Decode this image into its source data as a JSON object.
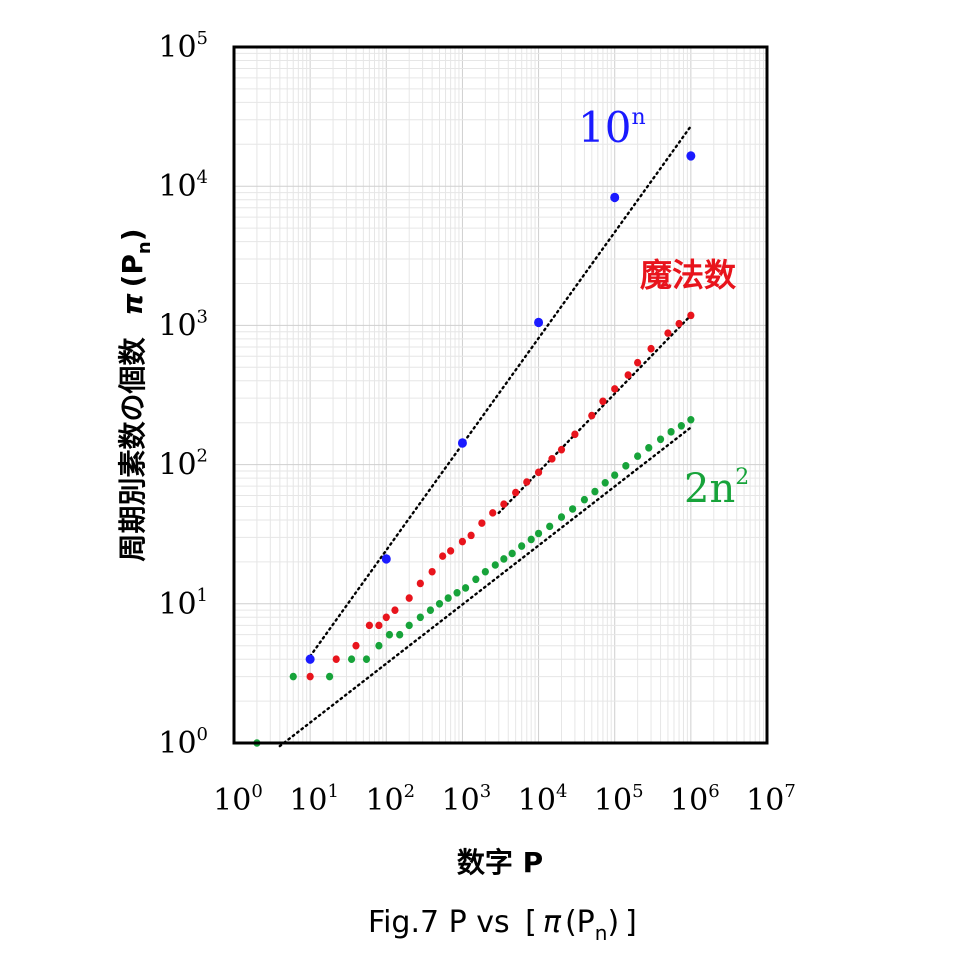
{
  "chart_data": {
    "type": "scatter",
    "title": "Fig.7  P vs [π(P_n)]",
    "title_parts": {
      "main": "Fig.7  P vs ",
      "bracket_open": "[",
      "pi": "π",
      "paren_open": "(",
      "P": "P",
      "sub": "n",
      "paren_close": ")",
      "bracket_close": "]"
    },
    "xlabel": "数字 P",
    "ylabel": "周期別素数の個数",
    "ylabel_symbol": {
      "pi": "π",
      "open": "(",
      "P": "P",
      "sub": "n",
      "close": ")"
    },
    "xscale": "log",
    "yscale": "log",
    "xlim": [
      1,
      10000000
    ],
    "ylim": [
      1,
      100000
    ],
    "grid": true,
    "x_ticks": [
      {
        "base": "10",
        "exp": "0"
      },
      {
        "base": "10",
        "exp": "1"
      },
      {
        "base": "10",
        "exp": "2"
      },
      {
        "base": "10",
        "exp": "3"
      },
      {
        "base": "10",
        "exp": "4"
      },
      {
        "base": "10",
        "exp": "5"
      },
      {
        "base": "10",
        "exp": "6"
      },
      {
        "base": "10",
        "exp": "7"
      }
    ],
    "y_ticks": [
      {
        "base": "10",
        "exp": "0"
      },
      {
        "base": "10",
        "exp": "1"
      },
      {
        "base": "10",
        "exp": "2"
      },
      {
        "base": "10",
        "exp": "3"
      },
      {
        "base": "10",
        "exp": "4"
      },
      {
        "base": "10",
        "exp": "5"
      }
    ],
    "series": [
      {
        "name": "10^n",
        "label_base": "10",
        "label_exp": "n",
        "color": "#1a1aff",
        "points": [
          [
            10,
            4
          ],
          [
            100,
            21
          ],
          [
            1000,
            143
          ],
          [
            10000,
            1050
          ],
          [
            100000,
            8300
          ],
          [
            1000000,
            16500
          ]
        ],
        "trend": {
          "from": [
            10,
            4.2
          ],
          "to": [
            1000000,
            27000
          ]
        }
      },
      {
        "name": "魔法数",
        "label": "魔法数",
        "color": "#e8141c",
        "points": [
          [
            10,
            3
          ],
          [
            22,
            4
          ],
          [
            40,
            5
          ],
          [
            60,
            7
          ],
          [
            80,
            7
          ],
          [
            100,
            8
          ],
          [
            130,
            9
          ],
          [
            200,
            11
          ],
          [
            280,
            14
          ],
          [
            400,
            17
          ],
          [
            550,
            22
          ],
          [
            700,
            24
          ],
          [
            1000,
            28
          ],
          [
            1300,
            31
          ],
          [
            1800,
            38
          ],
          [
            2500,
            45
          ],
          [
            3500,
            52
          ],
          [
            5000,
            63
          ],
          [
            7000,
            75
          ],
          [
            10000,
            88
          ],
          [
            15000,
            110
          ],
          [
            20000,
            128
          ],
          [
            30000,
            165
          ],
          [
            50000,
            225
          ],
          [
            70000,
            285
          ],
          [
            100000,
            350
          ],
          [
            150000,
            440
          ],
          [
            200000,
            540
          ],
          [
            300000,
            680
          ],
          [
            500000,
            880
          ],
          [
            700000,
            1030
          ],
          [
            1000000,
            1180
          ]
        ],
        "trend": {
          "from": [
            3000,
            45
          ],
          "to": [
            1000000,
            1180
          ]
        }
      },
      {
        "name": "2n^2",
        "label_base": "2n",
        "label_exp": "2",
        "color": "#17a33a",
        "points": [
          [
            2,
            1
          ],
          [
            6,
            3
          ],
          [
            18,
            3
          ],
          [
            35,
            4
          ],
          [
            55,
            4
          ],
          [
            80,
            5
          ],
          [
            110,
            6
          ],
          [
            150,
            6
          ],
          [
            200,
            7
          ],
          [
            280,
            8
          ],
          [
            380,
            9
          ],
          [
            500,
            10
          ],
          [
            650,
            11
          ],
          [
            850,
            12
          ],
          [
            1100,
            13
          ],
          [
            1500,
            15
          ],
          [
            2000,
            17
          ],
          [
            2700,
            19
          ],
          [
            3500,
            21
          ],
          [
            4500,
            23
          ],
          [
            6000,
            26
          ],
          [
            8000,
            29
          ],
          [
            10000,
            32
          ],
          [
            14000,
            36
          ],
          [
            20000,
            42
          ],
          [
            28000,
            48
          ],
          [
            40000,
            56
          ],
          [
            55000,
            64
          ],
          [
            75000,
            74
          ],
          [
            100000,
            84
          ],
          [
            140000,
            98
          ],
          [
            200000,
            115
          ],
          [
            280000,
            132
          ],
          [
            400000,
            152
          ],
          [
            550000,
            172
          ],
          [
            750000,
            190
          ],
          [
            1000000,
            210
          ]
        ],
        "trend": {
          "from": [
            4,
            0.95
          ],
          "to": [
            1000000,
            185
          ]
        }
      }
    ]
  }
}
